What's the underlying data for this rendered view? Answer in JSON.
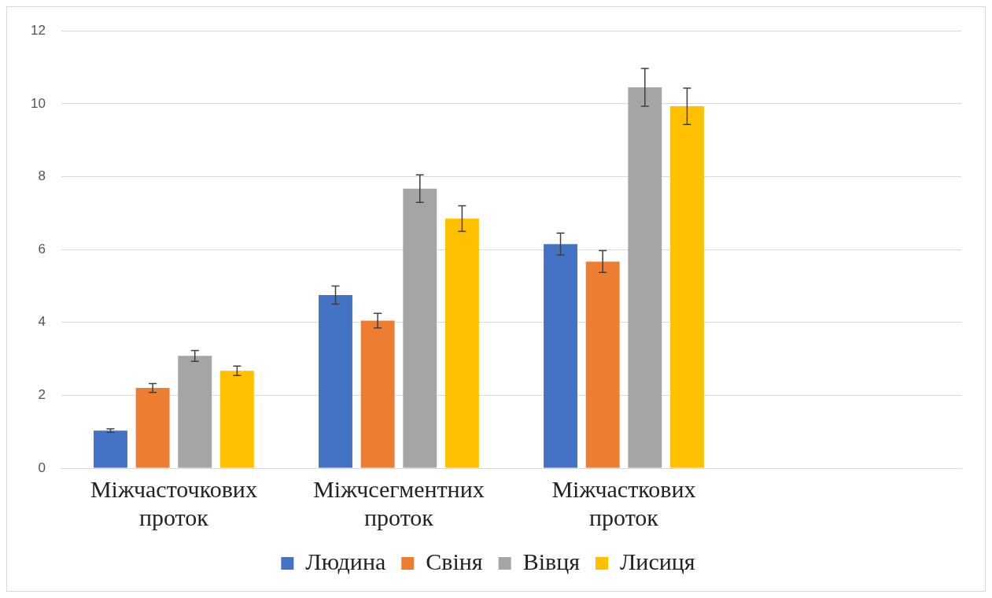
{
  "chart_data": {
    "type": "bar",
    "categories": [
      "Міжчасточкових проток",
      "Міжчсегментних проток",
      "Міжчасткових проток",
      null
    ],
    "series": [
      {
        "name": "Людина",
        "color": "#4472c4",
        "values": [
          1.03,
          4.75,
          6.15,
          null
        ],
        "errors": [
          0.05,
          0.25,
          0.3,
          null
        ]
      },
      {
        "name": "Свіня",
        "color": "#ed7d31",
        "values": [
          2.2,
          4.05,
          5.67,
          null
        ],
        "errors": [
          0.12,
          0.2,
          0.3,
          null
        ]
      },
      {
        "name": "Вівця",
        "color": "#a5a5a5",
        "values": [
          3.08,
          7.67,
          10.45,
          null
        ],
        "errors": [
          0.15,
          0.38,
          0.52,
          null
        ]
      },
      {
        "name": "Лисиця",
        "color": "#ffc000",
        "values": [
          2.67,
          6.85,
          9.93,
          null
        ],
        "errors": [
          0.13,
          0.35,
          0.5,
          null
        ]
      }
    ],
    "ylim": [
      0,
      12
    ],
    "yticks": [
      0,
      2,
      4,
      6,
      8,
      10,
      12
    ],
    "grid": "y",
    "legend": "bottom"
  }
}
